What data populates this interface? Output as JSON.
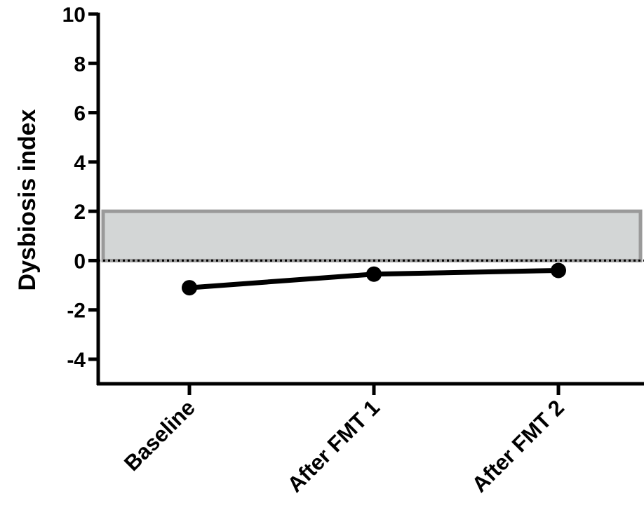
{
  "chart_data": {
    "type": "line",
    "title": "",
    "xlabel": "",
    "ylabel": "Dysbiosis index",
    "categories": [
      "Baseline",
      "After FMT 1",
      "After FMT 2"
    ],
    "series": [
      {
        "values": [
          -1.1,
          -0.55,
          -0.4
        ]
      }
    ],
    "ylim": [
      -5,
      10
    ],
    "yticks": [
      "10",
      "8",
      "6",
      "4",
      "2",
      "0",
      "-2",
      "-4"
    ],
    "reference_band": {
      "from": 0,
      "to": 2
    },
    "reference_line": 0,
    "grid": false,
    "colors": {
      "line": "#000000",
      "band_fill": "#d3d6d6",
      "band_stroke": "#9a9a9a"
    }
  }
}
